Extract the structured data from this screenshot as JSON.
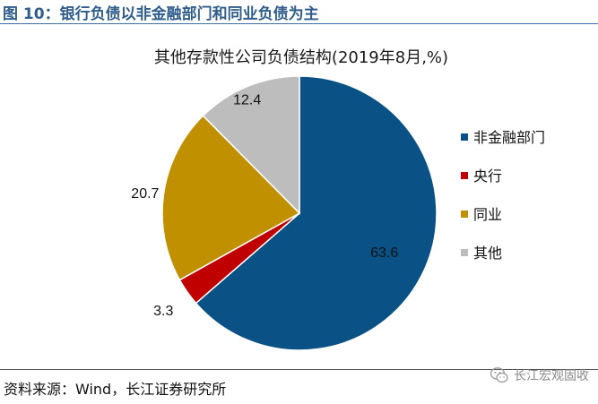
{
  "figure": {
    "title": "图 10：银行负债以非金融部门和同业负债为主",
    "source": "资料来源：Wind，长江证券研究所",
    "watermark": "长江宏观固收"
  },
  "chart_data": {
    "type": "pie",
    "title": "其他存款性公司负债结构(2019年8月,%)",
    "categories": [
      "非金融部门",
      "央行",
      "同业",
      "其他"
    ],
    "values": [
      63.6,
      3.3,
      20.7,
      12.4
    ],
    "data_labels": [
      "63.6",
      "3.3",
      "20.7",
      "12.4"
    ],
    "colors": [
      "#0a5185",
      "#c00000",
      "#c09000",
      "#bdbdbd"
    ],
    "start": "12 o'clock",
    "direction": "clockwise",
    "legend_position": "right"
  }
}
